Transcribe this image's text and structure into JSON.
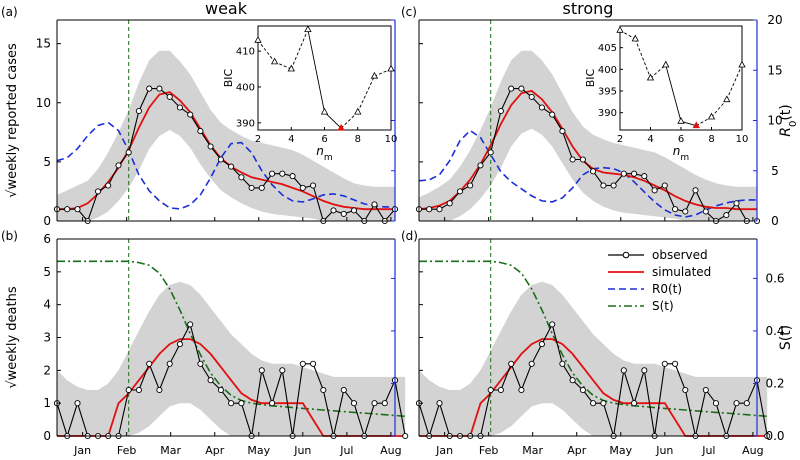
{
  "figure": {
    "col_titles": [
      "weak",
      "strong"
    ],
    "panel_labels": [
      "(a)",
      "(b)",
      "(c)",
      "(d)"
    ],
    "colors": {
      "observed": "#000000",
      "simulated": "#e01010",
      "R0": "#1a2ed8",
      "S": "#1a6e1a",
      "band": "#d3d3d3",
      "feb_line": "#1a6e1a",
      "inset_best": "#e01010"
    }
  },
  "chart_data": [
    {
      "panel": "(a)",
      "type": "line",
      "title": "weak",
      "ylabel": "√weekly reported cases",
      "y2label": "R0(t)",
      "ylabel2_main": "R",
      "ylabel2_sub": "0",
      "ylabel2_tail": "(t)",
      "ylim": [
        0,
        17
      ],
      "y2lim": [
        0,
        20
      ],
      "yticks": [
        0,
        5,
        10,
        15
      ],
      "y2ticks": [
        0,
        5,
        10,
        15,
        20
      ],
      "xlim": [
        0,
        33
      ],
      "month_labels": [
        "Jan",
        "Feb",
        "Mar",
        "Apr",
        "May",
        "Jun",
        "Jul",
        "Aug"
      ],
      "month_positions": [
        2.5,
        6.8,
        11.1,
        15.4,
        19.7,
        24.0,
        28.3,
        32.6
      ],
      "feb_marker": 7.0,
      "observed": [
        1,
        1,
        1,
        0,
        2.5,
        3,
        4.7,
        5.8,
        9.3,
        11.2,
        11.2,
        10.5,
        9.6,
        9,
        7.6,
        6.3,
        5.2,
        4.6,
        3.7,
        2.8,
        2.8,
        4,
        4,
        3.8,
        2.8,
        3,
        0,
        0.9,
        0.6,
        0.9,
        0,
        1.4,
        0,
        1
      ],
      "simulated": [
        1,
        1,
        1.1,
        1.5,
        2.3,
        3.3,
        4.5,
        6,
        7.9,
        9.6,
        10.7,
        10.9,
        10.2,
        9.2,
        7.8,
        6.4,
        5.3,
        4.6,
        4.1,
        3.7,
        3.5,
        3.3,
        3.1,
        2.8,
        2.5,
        2.1,
        1.7,
        1.4,
        1.2,
        1.1,
        1,
        1,
        1,
        1
      ],
      "band_lower": [
        0,
        0,
        0,
        0,
        0.3,
        0.8,
        1.7,
        2.8,
        4.3,
        6.1,
        7.2,
        7.7,
        7.2,
        6.2,
        4.8,
        3.6,
        2.6,
        2,
        1.5,
        1.1,
        0.8,
        0.6,
        0.5,
        0.4,
        0.3,
        0.2,
        0,
        0,
        0,
        0,
        0,
        0,
        0,
        0
      ],
      "band_upper": [
        2.2,
        2.6,
        3,
        3.4,
        4.4,
        5.8,
        7.5,
        9.4,
        11.7,
        13.6,
        14.4,
        14.4,
        13.5,
        12.4,
        10.9,
        9.4,
        8.3,
        7.7,
        7.2,
        6.8,
        6.6,
        6.4,
        6.2,
        6,
        5.6,
        5.1,
        4.6,
        4.1,
        3.6,
        3.2,
        3,
        2.9,
        2.9,
        2.9
      ],
      "R0": [
        6,
        6.3,
        7.2,
        8.5,
        9.5,
        9.8,
        9,
        7,
        4.6,
        3,
        2,
        1.3,
        1.2,
        1.6,
        2.6,
        4.3,
        6.3,
        7.7,
        7.8,
        6.8,
        5,
        3.6,
        2.6,
        2,
        1.9,
        2.2,
        2.6,
        2.7,
        2.5,
        2.1,
        1.7,
        1.5,
        1.4,
        1.4
      ],
      "inset": {
        "xlabel_main": "n",
        "xlabel_sub": "m",
        "ylabel": "BIC",
        "xlim": [
          2,
          10
        ],
        "ylim": [
          388,
          417
        ],
        "xticks": [
          2,
          4,
          6,
          8,
          10
        ],
        "yticks": [
          390,
          400,
          410
        ],
        "points": [
          [
            2,
            413
          ],
          [
            3,
            407
          ],
          [
            4,
            405
          ],
          [
            5,
            416
          ],
          [
            6,
            393
          ],
          [
            7,
            388.5
          ],
          [
            8,
            393
          ],
          [
            9,
            403
          ],
          [
            10,
            405
          ]
        ],
        "best_n": 7
      }
    },
    {
      "panel": "(b)",
      "type": "line",
      "ylabel": "√weekly deaths",
      "y2label": "S(t)",
      "ylim": [
        0,
        6
      ],
      "y2lim": [
        0,
        0.75
      ],
      "yticks": [
        0,
        1,
        2,
        3,
        4,
        5,
        6
      ],
      "y2ticks": [
        0,
        0.2,
        0.4,
        0.6
      ],
      "y2ticklabels": [
        "0.0",
        "0.2",
        "0.4",
        "0.6"
      ],
      "xlim": [
        0,
        33
      ],
      "month_labels": [
        "Jan",
        "Feb",
        "Mar",
        "Apr",
        "May",
        "Jun",
        "Jul",
        "Aug"
      ],
      "month_positions": [
        2.5,
        6.8,
        11.1,
        15.4,
        19.7,
        24.0,
        28.3,
        32.6
      ],
      "feb_marker": 7.0,
      "legend": [
        "observed",
        "simulated",
        "R0(t)",
        "S(t)"
      ],
      "observed": [
        1,
        0,
        1,
        0,
        0,
        0,
        0,
        1.4,
        1.4,
        2.2,
        1.4,
        2.2,
        2.8,
        3.4,
        2.2,
        1.7,
        1.4,
        1,
        1,
        0,
        2,
        1,
        2,
        0,
        2.2,
        2.2,
        1.4,
        0,
        1.4,
        1,
        0,
        1,
        1,
        1.7,
        0
      ],
      "simulated": [
        0,
        0,
        0,
        0,
        0,
        0,
        1,
        1.3,
        1.7,
        2.1,
        2.5,
        2.8,
        2.95,
        2.95,
        2.8,
        2.5,
        2.1,
        1.7,
        1.3,
        1.1,
        1,
        1,
        1,
        1,
        1,
        0.5,
        0,
        0,
        0,
        0,
        0,
        0,
        0,
        0,
        0
      ],
      "band_lower": [
        0,
        0,
        0,
        0,
        0,
        0,
        0,
        0,
        0.1,
        0.3,
        0.6,
        0.9,
        1,
        1,
        0.8,
        0.5,
        0.2,
        0,
        0,
        0,
        0,
        0,
        0,
        0,
        0,
        0,
        0,
        0,
        0,
        0,
        0,
        0,
        0,
        0,
        0
      ],
      "band_upper": [
        2,
        1.7,
        1.5,
        1.4,
        1.4,
        1.6,
        2,
        2.6,
        3.2,
        3.8,
        4.3,
        4.6,
        4.7,
        4.6,
        4.3,
        3.9,
        3.5,
        3.1,
        2.8,
        2.5,
        2.3,
        2.2,
        2.2,
        2.2,
        2.1,
        2,
        1.9,
        1.8,
        1.8,
        1.8,
        1.8,
        1.8,
        1.8,
        1.8,
        1.8
      ],
      "S": [
        0.665,
        0.665,
        0.665,
        0.665,
        0.665,
        0.665,
        0.665,
        0.665,
        0.66,
        0.65,
        0.62,
        0.56,
        0.48,
        0.39,
        0.31,
        0.24,
        0.19,
        0.155,
        0.135,
        0.125,
        0.12,
        0.115,
        0.112,
        0.108,
        0.105,
        0.102,
        0.099,
        0.096,
        0.093,
        0.09,
        0.087,
        0.084,
        0.081,
        0.078,
        0.075
      ]
    },
    {
      "panel": "(c)",
      "type": "line",
      "title": "strong",
      "ylabel": "√weekly reported cases",
      "y2label": "R0(t)",
      "ylabel2_main": "R",
      "ylabel2_sub": "0",
      "ylabel2_tail": "(t)",
      "ylim": [
        0,
        17
      ],
      "y2lim": [
        0,
        20
      ],
      "yticks": [
        0,
        5,
        10,
        15
      ],
      "y2ticks": [
        0,
        5,
        10,
        15,
        20
      ],
      "xlim": [
        0,
        33
      ],
      "month_labels": [
        "Jan",
        "Feb",
        "Mar",
        "Apr",
        "May",
        "Jun",
        "Jul",
        "Aug"
      ],
      "month_positions": [
        2.5,
        6.8,
        11.1,
        15.4,
        19.7,
        24.0,
        28.3,
        32.6
      ],
      "feb_marker": 7.0,
      "observed": [
        1,
        1,
        1,
        1.5,
        2.5,
        3,
        4.7,
        5.8,
        9.3,
        11.2,
        11.2,
        10.5,
        9.6,
        9,
        7.6,
        5.2,
        5.2,
        4.2,
        3,
        3,
        4,
        4,
        3.8,
        2.6,
        3,
        1,
        0.8,
        2.6,
        0.8,
        0,
        0.5,
        1.5,
        0,
        0
      ],
      "simulated": [
        1,
        1.1,
        1.3,
        1.7,
        2.5,
        3.5,
        4.8,
        6.4,
        8.2,
        9.8,
        10.8,
        11,
        10.3,
        9.2,
        7.8,
        6.3,
        5.1,
        4.4,
        4.1,
        4,
        3.9,
        3.7,
        3.4,
        3,
        2.6,
        2.1,
        1.7,
        1.4,
        1.2,
        1.1,
        1.1,
        1,
        1,
        1
      ],
      "band_lower": [
        0,
        0,
        0,
        0,
        0.4,
        1,
        1.9,
        3,
        4.5,
        6.3,
        7.4,
        7.8,
        7.3,
        6.3,
        4.9,
        3.5,
        2.4,
        1.7,
        1.2,
        0.9,
        0.7,
        0.6,
        0.5,
        0.4,
        0.3,
        0.2,
        0,
        0,
        0,
        0,
        0,
        0,
        0,
        0
      ],
      "band_upper": [
        2,
        2.4,
        2.9,
        3.5,
        4.6,
        6,
        7.7,
        9.6,
        11.8,
        13.6,
        14.4,
        14.4,
        13.6,
        12.4,
        10.8,
        9.2,
        8,
        7.3,
        6.9,
        6.6,
        6.4,
        6.2,
        6,
        5.8,
        5.4,
        4.9,
        4.4,
        3.9,
        3.5,
        3.2,
        3,
        2.9,
        2.9,
        2.9
      ],
      "R0": [
        4,
        4.1,
        4.6,
        6,
        8,
        9,
        8.3,
        6.6,
        4.9,
        3.9,
        3.2,
        2.5,
        2,
        1.9,
        2.3,
        3.3,
        4.6,
        5.2,
        5.3,
        5.2,
        4.8,
        3.9,
        2.9,
        1.9,
        1.1,
        0.6,
        0.4,
        0.6,
        1.1,
        1.5,
        1.8,
        2,
        2.1,
        2.1
      ],
      "inset": {
        "xlabel_main": "n",
        "xlabel_sub": "m",
        "ylabel": "BIC",
        "xlim": [
          2,
          10
        ],
        "ylim": [
          386,
          410
        ],
        "xticks": [
          2,
          4,
          6,
          8,
          10
        ],
        "yticks": [
          390,
          395,
          400,
          405
        ],
        "points": [
          [
            2,
            409
          ],
          [
            3,
            407
          ],
          [
            4,
            398
          ],
          [
            5,
            401
          ],
          [
            6,
            388
          ],
          [
            7,
            387
          ],
          [
            8,
            389
          ],
          [
            9,
            393
          ],
          [
            10,
            401
          ]
        ],
        "best_n": 7
      }
    },
    {
      "panel": "(d)",
      "type": "line",
      "ylabel": "√weekly deaths",
      "y2label": "S(t)",
      "ylim": [
        0,
        6
      ],
      "y2lim": [
        0,
        0.75
      ],
      "yticks": [
        0,
        1,
        2,
        3,
        4,
        5,
        6
      ],
      "y2ticks": [
        0,
        0.2,
        0.4,
        0.6
      ],
      "y2ticklabels": [
        "0.0",
        "0.2",
        "0.4",
        "0.6"
      ],
      "xlim": [
        0,
        33
      ],
      "month_labels": [
        "Jan",
        "Feb",
        "Mar",
        "Apr",
        "May",
        "Jun",
        "Jul",
        "Aug"
      ],
      "month_positions": [
        2.5,
        6.8,
        11.1,
        15.4,
        19.7,
        24.0,
        28.3,
        32.6
      ],
      "feb_marker": 7.0,
      "observed": [
        1,
        0,
        1,
        0,
        0,
        0,
        0,
        1.4,
        1.4,
        2.2,
        1.4,
        2.2,
        2.8,
        3.4,
        2.2,
        1.7,
        1.4,
        1,
        1,
        0,
        2,
        1,
        2,
        0,
        2.2,
        2.2,
        1.4,
        0,
        1.4,
        1,
        0,
        1,
        1,
        1.7,
        0
      ],
      "simulated": [
        0,
        0,
        0,
        0,
        0,
        0,
        1,
        1.3,
        1.7,
        2.1,
        2.5,
        2.8,
        2.95,
        2.95,
        2.8,
        2.5,
        2.1,
        1.7,
        1.3,
        1.1,
        1,
        1,
        1,
        1,
        1,
        0.5,
        0,
        0,
        0,
        0,
        0,
        0,
        0,
        0,
        0
      ],
      "band_lower": [
        0,
        0,
        0,
        0,
        0,
        0,
        0,
        0,
        0.1,
        0.3,
        0.6,
        0.9,
        1,
        1,
        0.8,
        0.5,
        0.2,
        0,
        0,
        0,
        0,
        0,
        0,
        0,
        0,
        0,
        0,
        0,
        0,
        0,
        0,
        0,
        0,
        0,
        0
      ],
      "band_upper": [
        2,
        1.7,
        1.5,
        1.4,
        1.4,
        1.6,
        2,
        2.6,
        3.2,
        3.8,
        4.3,
        4.6,
        4.7,
        4.6,
        4.3,
        3.9,
        3.5,
        3.1,
        2.8,
        2.5,
        2.3,
        2.2,
        2.2,
        2.2,
        2.1,
        2,
        1.9,
        1.8,
        1.8,
        1.8,
        1.8,
        1.8,
        1.8,
        1.8,
        1.8
      ],
      "S": [
        0.665,
        0.665,
        0.665,
        0.665,
        0.665,
        0.665,
        0.665,
        0.665,
        0.66,
        0.65,
        0.62,
        0.56,
        0.48,
        0.39,
        0.31,
        0.24,
        0.19,
        0.155,
        0.135,
        0.125,
        0.12,
        0.115,
        0.112,
        0.108,
        0.105,
        0.102,
        0.099,
        0.096,
        0.093,
        0.09,
        0.087,
        0.084,
        0.081,
        0.078,
        0.075
      ]
    }
  ]
}
